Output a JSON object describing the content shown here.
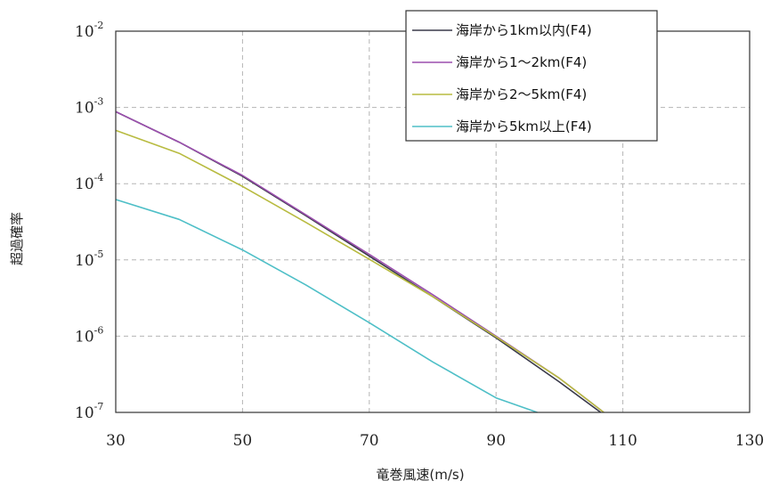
{
  "chart_data": {
    "type": "line",
    "title": "",
    "xlabel": "竜巻風速(m/s)",
    "ylabel": "超過確率",
    "xlim": [
      30,
      130
    ],
    "x_ticks": [
      30,
      50,
      70,
      90,
      110,
      130
    ],
    "y_scale": "log",
    "ylim": [
      1e-07,
      0.01
    ],
    "y_ticks": [
      {
        "base": "10",
        "exp": "-7"
      },
      {
        "base": "10",
        "exp": "-6"
      },
      {
        "base": "10",
        "exp": "-5"
      },
      {
        "base": "10",
        "exp": "-4"
      },
      {
        "base": "10",
        "exp": "-3"
      },
      {
        "base": "10",
        "exp": "-2"
      }
    ],
    "grid": true,
    "legend_position": "top-right",
    "series": [
      {
        "name": "海岸から1km以内(F4)",
        "color": "#3a3a4a",
        "x": [
          30,
          40,
          50,
          60,
          70,
          80,
          90,
          100,
          106.5
        ],
        "y": [
          0.00088,
          0.00035,
          0.000125,
          3.8e-05,
          1.12e-05,
          3.3e-06,
          9.5e-07,
          2.5e-07,
          1e-07
        ]
      },
      {
        "name": "海岸から1～2km(F4)",
        "color": "#9b4fae",
        "x": [
          30,
          40,
          50,
          60,
          70,
          80,
          90,
          100,
          107
        ],
        "y": [
          0.00088,
          0.00035,
          0.000128,
          3.9e-05,
          1.18e-05,
          3.5e-06,
          1e-06,
          2.8e-07,
          1e-07
        ]
      },
      {
        "name": "海岸から2～5km(F4)",
        "color": "#b8bb40",
        "x": [
          30,
          40,
          50,
          60,
          70,
          80,
          90,
          100,
          107
        ],
        "y": [
          0.0005,
          0.00025,
          9.2e-05,
          3.1e-05,
          1.02e-05,
          3.3e-06,
          9.8e-07,
          2.8e-07,
          1e-07
        ]
      },
      {
        "name": "海岸から5km以上(F4)",
        "color": "#4ebfc7",
        "x": [
          30,
          40,
          50,
          60,
          70,
          80,
          90,
          96.5
        ],
        "y": [
          6.2e-05,
          3.4e-05,
          1.35e-05,
          4.7e-06,
          1.5e-06,
          4.6e-07,
          1.55e-07,
          1e-07
        ]
      }
    ]
  }
}
